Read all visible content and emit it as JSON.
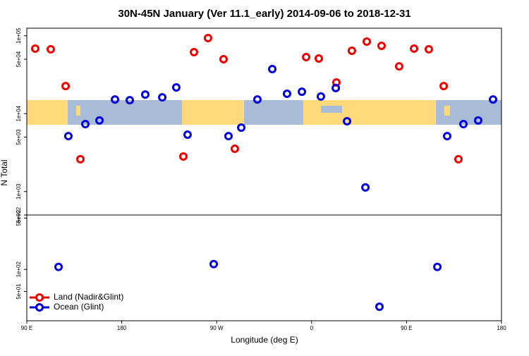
{
  "chart_data": [
    {
      "type": "scatter",
      "title": "30N-45N January (Ver 11.1_early)   2014-09-06 to 2018-12-31",
      "y_label": "N Total",
      "log_y": true,
      "xlim": [
        90,
        540
      ],
      "ylim": [
        500,
        125000
      ],
      "yticks": [
        {
          "value": 100000,
          "label": "1e+05"
        },
        {
          "value": 50000,
          "label": "5e+04"
        },
        {
          "value": 10000,
          "label": "1e+04"
        },
        {
          "value": 5000,
          "label": "5e+03"
        },
        {
          "value": 1000,
          "label": "1e+03"
        },
        {
          "value": 500,
          "label": "5e+02"
        }
      ],
      "series": [
        {
          "name": "Land (Nadir&Glint)",
          "color": "#ee0000",
          "x": [
            98,
            112.7,
            126.8,
            140.8,
            238.4,
            248.5,
            261.8,
            276.5,
            287.2,
            354.8,
            366.8,
            383.5,
            398.2,
            412.3,
            426.3,
            443,
            457.1,
            471.1,
            485.2,
            499.2
          ],
          "values": [
            68400,
            67000,
            22600,
            2600,
            2820,
            61500,
            93300,
            50000,
            3540,
            53200,
            51000,
            25100,
            64100,
            84100,
            74300,
            40500,
            68400,
            67000,
            22600,
            2600
          ]
        },
        {
          "name": "Ocean (Glint)",
          "color": "#0000dd",
          "x": [
            129.4,
            145.5,
            158.9,
            173.6,
            187.6,
            202.3,
            218.4,
            231.7,
            242.4,
            281.2,
            293.3,
            308.6,
            322.7,
            336.7,
            350.8,
            368.8,
            382.9,
            393.6,
            411,
            488.5,
            503.9,
            517.9,
            532
          ],
          "values": [
            5150,
            7350,
            8170,
            15200,
            14900,
            17600,
            16200,
            21700,
            5370,
            5150,
            6620,
            15200,
            37300,
            18000,
            19100,
            16600,
            21300,
            7980,
            1130,
            5150,
            7350,
            8170,
            15200
          ]
        }
      ]
    },
    {
      "type": "scatter",
      "x_label": "Longitude (deg E)",
      "log_y": true,
      "legend": "bottom left",
      "xlim": [
        90,
        540
      ],
      "ylim": [
        20,
        550
      ],
      "xticks": [
        {
          "value": 90,
          "label": "90 E"
        },
        180,
        {
          "value": 270,
          "label": "90 W"
        },
        {
          "value": 360,
          "label": "0"
        },
        {
          "value": 450,
          "label": "90 E"
        },
        {
          "value": 540,
          "label": "180"
        }
      ],
      "yticks": [
        {
          "value": 500,
          "label": "5e+02"
        },
        {
          "value": 100,
          "label": "1e+02"
        },
        {
          "value": 50,
          "label": "5e+01"
        }
      ],
      "series": [
        {
          "name": "Land (Nadir&Glint)",
          "color": "#ee0000",
          "x": [],
          "values": []
        },
        {
          "name": "Ocean (Glint)",
          "color": "#0000dd",
          "x": [
            120.1,
            267.2,
            424.3,
            479.2
          ],
          "values": [
            108,
            118,
            31,
            108
          ]
        }
      ]
    }
  ]
}
